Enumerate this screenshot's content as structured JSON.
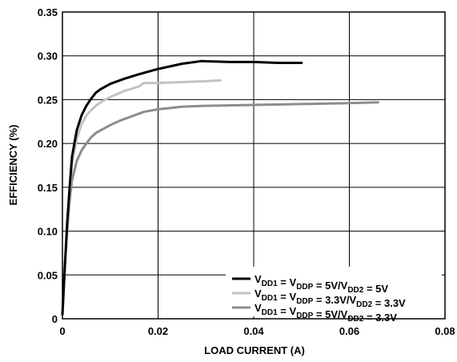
{
  "chart_data": {
    "type": "line",
    "title": "",
    "xlabel": "LOAD CURRENT (A)",
    "ylabel": "EFFICIENCY (%)",
    "xlim": [
      0,
      0.08
    ],
    "ylim": [
      0,
      0.35
    ],
    "xticks": [
      0,
      0.02,
      0.04,
      0.06,
      0.08
    ],
    "yticks": [
      0,
      0.05,
      0.1,
      0.15,
      0.2,
      0.25,
      0.3,
      0.35
    ],
    "xtick_labels": [
      "0",
      "0.02",
      "0.04",
      "0.06",
      "0.08"
    ],
    "ytick_labels": [
      "0",
      "0.05",
      "0.10",
      "0.15",
      "0.20",
      "0.25",
      "0.30",
      "0.35"
    ],
    "grid": true,
    "legend_position": "bottom-right",
    "series": [
      {
        "legend": [
          {
            "t": "V",
            "s": false
          },
          {
            "t": "DD1",
            "s": true
          },
          {
            "t": " = V",
            "s": false
          },
          {
            "t": "DDP",
            "s": true
          },
          {
            "t": " = 5V/V",
            "s": false
          },
          {
            "t": "DD2",
            "s": true
          },
          {
            "t": " = 5V",
            "s": false
          }
        ],
        "color": "#000000",
        "x": [
          0,
          0.0005,
          0.001,
          0.0015,
          0.002,
          0.003,
          0.004,
          0.005,
          0.006,
          0.007,
          0.008,
          0.01,
          0.013,
          0.016,
          0.02,
          0.025,
          0.029,
          0.035,
          0.04,
          0.045,
          0.05
        ],
        "y": [
          0.005,
          0.06,
          0.11,
          0.15,
          0.185,
          0.215,
          0.232,
          0.243,
          0.251,
          0.258,
          0.262,
          0.268,
          0.274,
          0.279,
          0.285,
          0.291,
          0.294,
          0.293,
          0.293,
          0.292,
          0.292
        ]
      },
      {
        "legend": [
          {
            "t": "V",
            "s": false
          },
          {
            "t": "DD1",
            "s": true
          },
          {
            "t": " = V",
            "s": false
          },
          {
            "t": "DDP",
            "s": true
          },
          {
            "t": " = 3.3V/V",
            "s": false
          },
          {
            "t": "DD2",
            "s": true
          },
          {
            "t": " = 3.3V",
            "s": false
          }
        ],
        "color": "#c2c2c2",
        "x": [
          0,
          0.0005,
          0.001,
          0.0015,
          0.002,
          0.003,
          0.004,
          0.005,
          0.006,
          0.007,
          0.008,
          0.01,
          0.013,
          0.016,
          0.017,
          0.02,
          0.025,
          0.03,
          0.033
        ],
        "y": [
          0.005,
          0.06,
          0.105,
          0.145,
          0.178,
          0.205,
          0.222,
          0.232,
          0.238,
          0.243,
          0.247,
          0.253,
          0.26,
          0.265,
          0.269,
          0.269,
          0.27,
          0.271,
          0.272
        ]
      },
      {
        "legend": [
          {
            "t": "V",
            "s": false
          },
          {
            "t": "DD1",
            "s": true
          },
          {
            "t": " = V",
            "s": false
          },
          {
            "t": "DDP",
            "s": true
          },
          {
            "t": " = 5V/V",
            "s": false
          },
          {
            "t": "DD2",
            "s": true
          },
          {
            "t": " = 3.3V",
            "s": false
          }
        ],
        "color": "#8c8c8c",
        "x": [
          0,
          0.0005,
          0.001,
          0.0015,
          0.002,
          0.003,
          0.004,
          0.005,
          0.006,
          0.007,
          0.008,
          0.01,
          0.012,
          0.015,
          0.017,
          0.02,
          0.025,
          0.03,
          0.04,
          0.05,
          0.06,
          0.066
        ],
        "y": [
          0.005,
          0.06,
          0.1,
          0.135,
          0.158,
          0.18,
          0.192,
          0.2,
          0.207,
          0.212,
          0.215,
          0.221,
          0.226,
          0.232,
          0.236,
          0.239,
          0.242,
          0.243,
          0.244,
          0.245,
          0.246,
          0.247
        ]
      }
    ]
  }
}
